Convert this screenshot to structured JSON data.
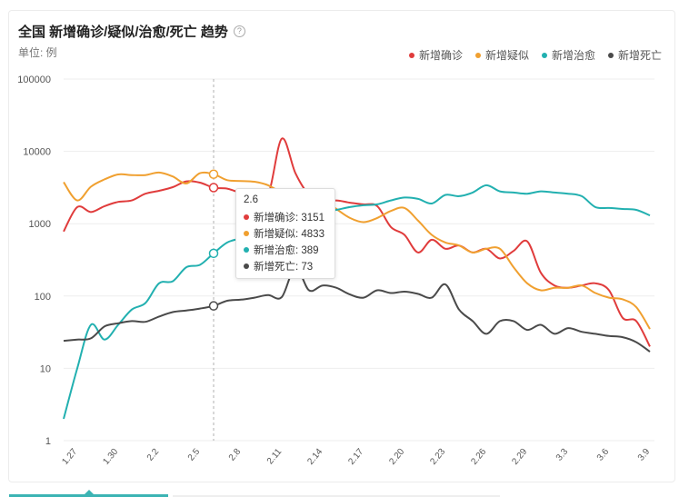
{
  "header": {
    "title": "全国 新增确诊/疑似/治愈/死亡 趋势",
    "help_icon": "question-circle-icon",
    "unit": "单位: 例"
  },
  "legend": [
    {
      "label": "新增确诊",
      "color": "#e03c3c"
    },
    {
      "label": "新增疑似",
      "color": "#f0a030"
    },
    {
      "label": "新增治愈",
      "color": "#22b0b0"
    },
    {
      "label": "新增死亡",
      "color": "#4a4a4a"
    }
  ],
  "tooltip": {
    "date": "2.6",
    "rows": [
      {
        "label": "新增确诊: 3151",
        "color": "#e03c3c"
      },
      {
        "label": "新增疑似: 4833",
        "color": "#f0a030"
      },
      {
        "label": "新增治愈: 389",
        "color": "#22b0b0"
      },
      {
        "label": "新增死亡: 73",
        "color": "#4a4a4a"
      }
    ]
  },
  "chart_data": {
    "type": "line",
    "y_scale": "log",
    "ylim": [
      1,
      100000
    ],
    "y_ticks": [
      {
        "value": 100000,
        "label": "100000"
      },
      {
        "value": 10000,
        "label": "10000"
      },
      {
        "value": 1000,
        "label": "1000"
      },
      {
        "value": 100,
        "label": "100"
      },
      {
        "value": 10,
        "label": "10"
      },
      {
        "value": 1,
        "label": "1"
      }
    ],
    "x": [
      "1.26",
      "1.27",
      "1.28",
      "1.29",
      "1.30",
      "1.31",
      "2.1",
      "2.2",
      "2.3",
      "2.4",
      "2.5",
      "2.6",
      "2.7",
      "2.8",
      "2.9",
      "2.10",
      "2.11",
      "2.12",
      "2.13",
      "2.14",
      "2.15",
      "2.16",
      "2.17",
      "2.18",
      "2.19",
      "2.20",
      "2.21",
      "2.22",
      "2.23",
      "2.24",
      "2.25",
      "2.26",
      "2.27",
      "2.28",
      "2.29",
      "3.1",
      "3.2",
      "3.3",
      "3.4",
      "3.5",
      "3.6",
      "3.7",
      "3.8",
      "3.9"
    ],
    "x_tick_labels": [
      "1.27",
      "1.30",
      "2.2",
      "2.5",
      "2.8",
      "2.11",
      "2.14",
      "2.17",
      "2.20",
      "2.23",
      "2.26",
      "2.29",
      "3.3",
      "3.6",
      "3.9"
    ],
    "highlight_x": "2.6",
    "series": [
      {
        "name": "新增确诊",
        "color": "#e03c3c",
        "values": [
          780,
          1700,
          1450,
          1750,
          2000,
          2100,
          2600,
          2850,
          3200,
          3850,
          3700,
          3151,
          3050,
          2700,
          2800,
          2500,
          15000,
          5000,
          2500,
          2000,
          2100,
          1950,
          1850,
          1750,
          900,
          700,
          400,
          600,
          450,
          500,
          400,
          450,
          330,
          420,
          570,
          210,
          140,
          130,
          140,
          150,
          120,
          50,
          45,
          20
        ]
      },
      {
        "name": "新增疑似",
        "color": "#f0a030",
        "values": [
          3750,
          2100,
          3250,
          4100,
          4800,
          4700,
          4700,
          5100,
          4500,
          3600,
          5000,
          4833,
          4000,
          3900,
          3800,
          3400,
          2700,
          2500,
          2400,
          2200,
          1600,
          1200,
          1050,
          1200,
          1500,
          1650,
          1100,
          700,
          550,
          500,
          400,
          450,
          450,
          250,
          150,
          120,
          130,
          130,
          140,
          110,
          95,
          90,
          70,
          35
        ]
      },
      {
        "name": "新增治愈",
        "color": "#22b0b0",
        "values": [
          2,
          10,
          40,
          25,
          40,
          65,
          80,
          150,
          160,
          250,
          270,
          389,
          550,
          630,
          750,
          900,
          1050,
          1200,
          1400,
          1450,
          1550,
          1700,
          1800,
          1850,
          2100,
          2300,
          2200,
          1900,
          2500,
          2400,
          2700,
          3400,
          2800,
          2700,
          2600,
          2800,
          2700,
          2600,
          2400,
          1700,
          1650,
          1600,
          1550,
          1300
        ]
      },
      {
        "name": "新增死亡",
        "color": "#4a4a4a",
        "values": [
          24,
          25,
          26,
          38,
          42,
          45,
          44,
          52,
          60,
          63,
          67,
          73,
          86,
          89,
          95,
          103,
          97,
          250,
          120,
          140,
          130,
          105,
          95,
          120,
          110,
          115,
          107,
          95,
          145,
          65,
          45,
          30,
          45,
          45,
          34,
          40,
          30,
          36,
          32,
          30,
          28,
          27,
          23,
          17
        ]
      }
    ]
  }
}
